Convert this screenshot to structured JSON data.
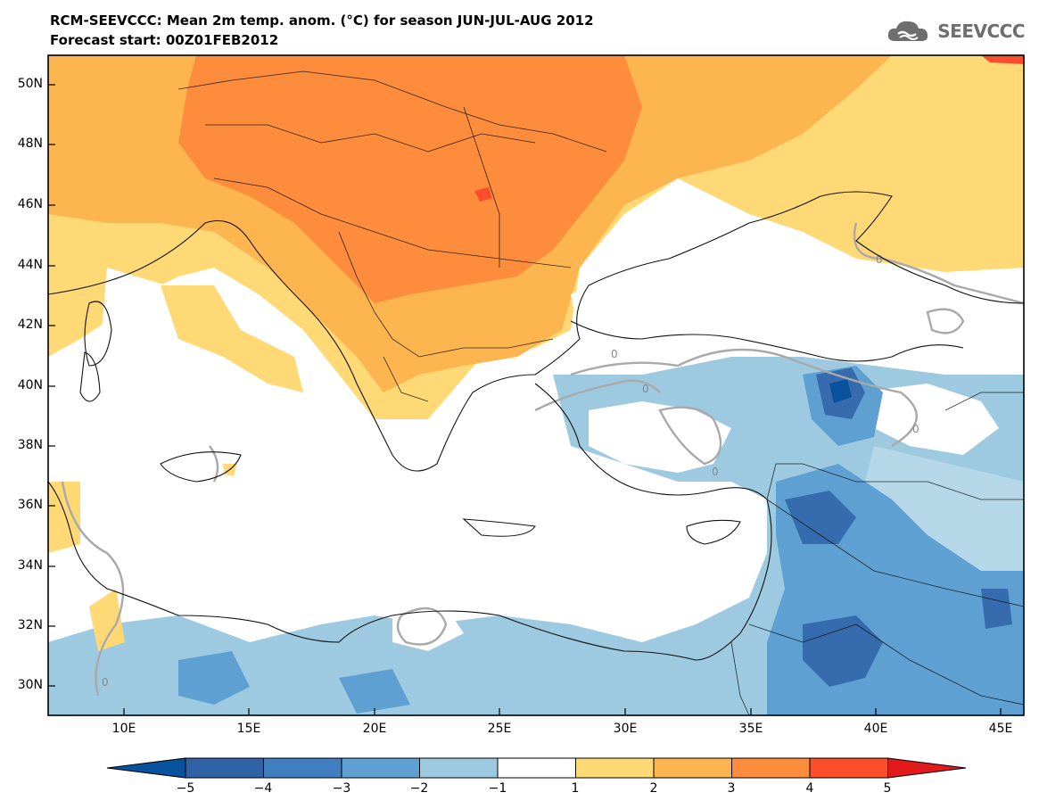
{
  "header": {
    "title_line1": "RCM-SEEVCCC: Mean 2m temp. anom. (°C) for season JUN-JUL-AUG 2012",
    "title_line2": "Forecast start: 00Z01FEB2012",
    "logo_text": "SEEVCCC",
    "logo_icon": "cloud-icon"
  },
  "map": {
    "y_ticks": [
      "50N",
      "48N",
      "46N",
      "44N",
      "42N",
      "40N",
      "38N",
      "36N",
      "34N",
      "32N",
      "30N"
    ],
    "x_ticks": [
      "10E",
      "15E",
      "20E",
      "25E",
      "30E",
      "35E",
      "40E",
      "45E"
    ],
    "contour_label": "0"
  },
  "colorbar": {
    "labels": [
      "−5",
      "−4",
      "−3",
      "−2",
      "−1",
      "1",
      "2",
      "3",
      "4",
      "5"
    ],
    "colors": [
      "#2f63a6",
      "#3f7fbf",
      "#5fa0d3",
      "#9ecae1",
      "#ffffff",
      "#fed976",
      "#fdb550",
      "#fd8c3c",
      "#fc4e2a"
    ],
    "end_colors": {
      "low": "#08519c",
      "high": "#e31a1c"
    }
  }
}
